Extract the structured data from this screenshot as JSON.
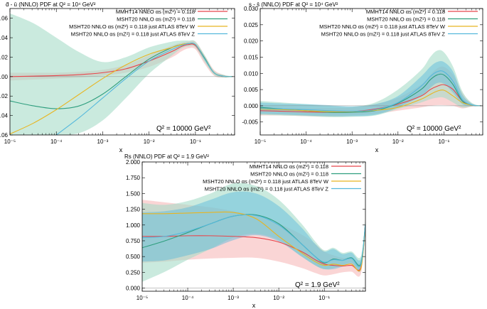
{
  "panels": [
    {
      "id": "dbar-ubar",
      "title": "d̄ - ū (NNLO) PDF at Q² = 10⁴ GeV²",
      "q2_label": "Q² = 10000 GeV²",
      "xlabel": "x",
      "ylim": [
        -0.06,
        0.07
      ],
      "ytick_labels": [
        "-0.06",
        "-0.04",
        "-0.02",
        "0.00",
        "0.02",
        "0.04",
        "0.06"
      ],
      "xtick_labels": [
        "10⁻⁵",
        "10⁻⁴",
        "10⁻³",
        "10⁻²",
        "10⁻¹"
      ]
    },
    {
      "id": "s-sbar",
      "title": "s - s̄ (NNLO) PDF at Q² = 10⁴ GeV²",
      "q2_label": "Q² = 10000 GeV²",
      "xlabel": "x",
      "ylim": [
        -0.009,
        0.03
      ],
      "ytick_labels": [
        "-0.005",
        "0.000",
        "0.005",
        "0.010",
        "0.015",
        "0.020",
        "0.025",
        "0.030"
      ],
      "xtick_labels": [
        "10⁻⁵",
        "10⁻⁴",
        "10⁻³",
        "10⁻²",
        "10⁻¹"
      ]
    },
    {
      "id": "rs",
      "title": "Rs (NNLO) PDF at Q² = 1.9 GeV²",
      "q2_label": "Q² = 1.9 GeV²",
      "xlabel": "x",
      "ylim": [
        -0.05,
        2.0
      ],
      "ytick_labels": [
        "0.000",
        "0.250",
        "0.500",
        "0.750",
        "1.000",
        "1.250",
        "1.500",
        "1.750",
        "2.000"
      ],
      "xtick_labels": [
        "10⁻⁵",
        "10⁻⁴",
        "10⁻³",
        "10⁻²",
        "10⁻¹"
      ]
    }
  ],
  "legend": {
    "mmht14": "MMHT14 NNLO αs (mZ²) = 0.118",
    "msht20": "MSHT20 NNLO αs (mZ²) = 0.118",
    "w": "MSHT20 NNLO αs (mZ²) = 0.118 just ATLAS 8TeV W",
    "z": "MSHT20 NNLO αs (mZ²) = 0.118 just ATLAS 8TeV Z"
  },
  "colors": {
    "mmht14": "#e8454b",
    "mmht14_band": "#f6b9b9",
    "msht20": "#2e9e7e",
    "msht20_band": "#a6dcc8",
    "w": "#e8b521",
    "z": "#55b8dc"
  },
  "chart_data": [
    {
      "type": "line",
      "title": "d̄ - ū (NNLO) PDF at Q² = 10⁴ GeV²",
      "xlabel": "x",
      "ylabel": "",
      "xscale": "log",
      "xlim": [
        1e-05,
        0.7
      ],
      "ylim": [
        -0.06,
        0.07
      ],
      "x_log10": [
        -5,
        -4.5,
        -4,
        -3.5,
        -3,
        -2.5,
        -2,
        -1.5,
        -1.3,
        -1.15,
        -1,
        -0.8,
        -0.6,
        -0.4,
        -0.2
      ],
      "series": [
        {
          "name": "MMHT14 NNLO αs (mZ²) = 0.118",
          "color_key": "mmht14",
          "values": [
            0.0,
            0.0005,
            0.001,
            0.002,
            0.004,
            0.008,
            0.016,
            0.026,
            0.031,
            0.033,
            0.032,
            0.018,
            0.004,
            0.0005,
            0.0
          ],
          "band_low": [
            -0.004,
            -0.003,
            -0.002,
            -0.001,
            0.001,
            0.004,
            0.01,
            0.02,
            0.026,
            0.029,
            0.028,
            0.013,
            0.001,
            -0.001,
            0.0
          ],
          "band_high": [
            0.004,
            0.004,
            0.004,
            0.005,
            0.007,
            0.012,
            0.022,
            0.032,
            0.035,
            0.036,
            0.036,
            0.022,
            0.007,
            0.002,
            0.0
          ]
        },
        {
          "name": "MSHT20 NNLO αs (mZ²) = 0.118",
          "color_key": "msht20",
          "values": [
            -0.025,
            -0.03,
            -0.033,
            -0.03,
            -0.018,
            0.0,
            0.018,
            0.03,
            0.033,
            0.034,
            0.033,
            0.019,
            0.004,
            0.0005,
            0.0
          ],
          "band_low": [
            -0.06,
            -0.06,
            -0.06,
            -0.058,
            -0.045,
            -0.022,
            0.003,
            0.022,
            0.029,
            0.031,
            0.03,
            0.015,
            0.002,
            -0.001,
            0.0
          ],
          "band_high": [
            0.065,
            0.055,
            0.04,
            0.025,
            0.015,
            0.02,
            0.03,
            0.036,
            0.037,
            0.037,
            0.036,
            0.022,
            0.006,
            0.002,
            0.0
          ]
        },
        {
          "name": "MSHT20 NNLO αs (mZ²) = 0.118 just ATLAS 8TeV W",
          "color_key": "w",
          "values": [
            -0.059,
            -0.048,
            -0.034,
            -0.018,
            -0.002,
            0.012,
            0.023,
            0.03,
            0.033,
            0.034,
            0.033,
            0.018,
            0.004,
            0.0005,
            0.0
          ]
        },
        {
          "name": "MSHT20 NNLO αs (mZ²) = 0.118 just ATLAS 8TeV Z",
          "color_key": "z",
          "values": [
            null,
            null,
            -0.06,
            -0.042,
            -0.022,
            -0.002,
            0.016,
            0.028,
            0.032,
            0.034,
            0.033,
            0.018,
            0.004,
            0.0005,
            0.0
          ]
        }
      ]
    },
    {
      "type": "line",
      "title": "s - s̄ (NNLO) PDF at Q² = 10⁴ GeV²",
      "xlabel": "x",
      "ylabel": "",
      "xscale": "log",
      "xlim": [
        1e-05,
        0.7
      ],
      "ylim": [
        -0.009,
        0.03
      ],
      "x_log10": [
        -5,
        -4.5,
        -4,
        -3.5,
        -3,
        -2.5,
        -2,
        -1.5,
        -1.3,
        -1.15,
        -1,
        -0.8,
        -0.6,
        -0.4,
        -0.2
      ],
      "series": [
        {
          "name": "MMHT14 NNLO αs (mZ²) = 0.118",
          "color_key": "mmht14",
          "values": [
            -0.0015,
            -0.0017,
            -0.0019,
            -0.002,
            -0.0018,
            -0.001,
            0.0005,
            0.003,
            0.005,
            0.006,
            0.0065,
            0.005,
            0.0015,
            0.0002,
            0.0
          ],
          "band_low": [
            -0.003,
            -0.003,
            -0.0032,
            -0.0033,
            -0.003,
            -0.0025,
            -0.0015,
            -0.0005,
            0.0,
            0.0002,
            0.0002,
            0.0,
            -0.0008,
            -0.0003,
            0.0
          ],
          "band_high": [
            -0.0002,
            -0.0004,
            -0.0005,
            -0.0006,
            -0.0005,
            0.0005,
            0.0025,
            0.0065,
            0.0095,
            0.0115,
            0.012,
            0.0095,
            0.004,
            0.0008,
            0.0
          ]
        },
        {
          "name": "MSHT20 NNLO αs (mZ²) = 0.118",
          "color_key": "msht20",
          "values": [
            -0.0005,
            -0.001,
            -0.0015,
            -0.002,
            -0.002,
            -0.0015,
            0.0008,
            0.005,
            0.008,
            0.0095,
            0.0095,
            0.0065,
            0.0015,
            0.0002,
            0.0
          ],
          "band_low": [
            -0.0028,
            -0.003,
            -0.0032,
            -0.0035,
            -0.0034,
            -0.003,
            -0.001,
            0.001,
            0.002,
            0.0025,
            0.0025,
            0.001,
            -0.0005,
            -0.0002,
            0.0
          ],
          "band_high": [
            0.0015,
            0.001,
            0.0005,
            0.0,
            -0.0003,
            0.001,
            0.005,
            0.011,
            0.015,
            0.017,
            0.0165,
            0.012,
            0.0045,
            0.001,
            0.0
          ]
        },
        {
          "name": "MSHT20 NNLO αs (mZ²) = 0.118 just ATLAS 8TeV W",
          "color_key": "w",
          "values": [
            -0.001,
            -0.0012,
            -0.0015,
            -0.0018,
            -0.0018,
            -0.0014,
            -0.0005,
            0.002,
            0.0035,
            0.0045,
            0.0048,
            0.003,
            0.001,
            0.0002,
            0.0
          ]
        },
        {
          "name": "MSHT20 NNLO αs (mZ²) = 0.118 just ATLAS 8TeV Z",
          "color_key": "z",
          "values": [
            -0.0008,
            -0.001,
            -0.0012,
            -0.0015,
            -0.0017,
            -0.0012,
            0.001,
            0.006,
            0.009,
            0.0105,
            0.0105,
            0.0075,
            0.002,
            0.0003,
            0.0
          ],
          "band_low": [
            -0.0025,
            -0.0027,
            -0.003,
            -0.0032,
            -0.0032,
            -0.0028,
            -0.0005,
            0.003,
            0.0055,
            0.007,
            0.0068,
            0.004,
            0.0005,
            0.0,
            0.0
          ],
          "band_high": [
            0.001,
            0.0007,
            0.0005,
            0.0002,
            -0.0002,
            0.0005,
            0.003,
            0.009,
            0.012,
            0.0135,
            0.0135,
            0.0105,
            0.0035,
            0.0007,
            0.0
          ]
        }
      ]
    },
    {
      "type": "line",
      "title": "Rs (NNLO) PDF at Q² = 1.9 GeV²",
      "xlabel": "x",
      "ylabel": "",
      "xscale": "log",
      "xlim": [
        1e-05,
        0.8
      ],
      "ylim": [
        -0.05,
        2.0
      ],
      "x_log10": [
        -5,
        -4.5,
        -4,
        -3.5,
        -3,
        -2.5,
        -2,
        -1.5,
        -1.2,
        -1,
        -0.8,
        -0.6,
        -0.4,
        -0.2,
        -0.1
      ],
      "series": [
        {
          "name": "MMHT14 NNLO αs (mZ²) = 0.118",
          "color_key": "mmht14",
          "values": [
            0.82,
            0.82,
            0.83,
            0.83,
            0.82,
            0.8,
            0.73,
            0.58,
            0.45,
            0.38,
            0.36,
            0.35,
            0.36,
            0.32,
            0.98
          ],
          "band_low": [
            0.4,
            0.42,
            0.45,
            0.47,
            0.48,
            0.48,
            0.42,
            0.32,
            0.24,
            0.2,
            0.22,
            0.25,
            0.26,
            0.22,
            0.9
          ],
          "band_high": [
            1.4,
            1.36,
            1.32,
            1.28,
            1.22,
            1.14,
            1.02,
            0.85,
            0.7,
            0.58,
            0.52,
            0.48,
            0.48,
            0.42,
            1.05
          ]
        },
        {
          "name": "MSHT20 NNLO αs (mZ²) = 0.118",
          "color_key": "msht20",
          "values": [
            0.64,
            0.75,
            0.88,
            1.02,
            1.14,
            1.16,
            1.02,
            0.7,
            0.5,
            0.4,
            0.46,
            0.44,
            0.48,
            0.38,
            1.0
          ],
          "band_low": [
            0.1,
            0.26,
            0.45,
            0.62,
            0.8,
            0.86,
            0.76,
            0.5,
            0.36,
            0.3,
            0.32,
            0.36,
            0.4,
            0.3,
            0.92
          ],
          "band_high": [
            1.35,
            1.32,
            1.38,
            1.5,
            1.66,
            1.62,
            1.4,
            1.02,
            0.74,
            0.6,
            0.64,
            0.56,
            0.58,
            0.5,
            1.08
          ]
        },
        {
          "name": "MSHT20 NNLO αs (mZ²) = 0.118 just ATLAS 8TeV W",
          "color_key": "w",
          "values": [
            1.18,
            1.18,
            1.19,
            1.2,
            1.2,
            1.1,
            0.82,
            0.56,
            0.42,
            0.36,
            0.38,
            0.36,
            0.38,
            0.3,
            0.98
          ]
        },
        {
          "name": "MSHT20 NNLO αs (mZ²) = 0.118 just ATLAS 8TeV Z",
          "color_key": "z",
          "values": [
            0.8,
            0.82,
            0.9,
            1.02,
            1.14,
            1.15,
            1.0,
            0.7,
            0.5,
            0.41,
            0.45,
            0.44,
            0.47,
            0.36,
            1.0
          ],
          "band_low": [
            0.42,
            0.44,
            0.52,
            0.62,
            0.76,
            0.84,
            0.74,
            0.5,
            0.36,
            0.3,
            0.3,
            0.34,
            0.38,
            0.28,
            0.92
          ],
          "band_high": [
            1.2,
            1.22,
            1.28,
            1.4,
            1.52,
            1.5,
            1.3,
            0.96,
            0.7,
            0.58,
            0.62,
            0.54,
            0.56,
            0.46,
            1.06
          ]
        }
      ]
    }
  ]
}
